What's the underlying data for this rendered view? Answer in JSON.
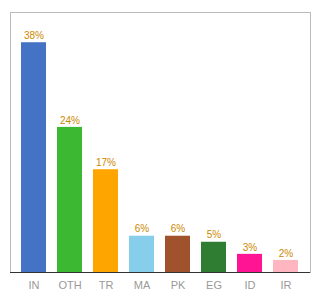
{
  "chart_data": {
    "type": "bar",
    "categories": [
      "IN",
      "OTH",
      "TR",
      "MA",
      "PK",
      "EG",
      "ID",
      "IR"
    ],
    "values": [
      38,
      24,
      17,
      6,
      6,
      5,
      3,
      2
    ],
    "value_labels": [
      "38%",
      "24%",
      "17%",
      "6%",
      "6%",
      "5%",
      "3%",
      "2%"
    ],
    "colors": [
      "#4472C4",
      "#3CB832",
      "#FFA500",
      "#87CEEB",
      "#A0522D",
      "#2E7D32",
      "#FF1493",
      "#FFB6C1"
    ],
    "ylim": [
      0,
      43
    ],
    "data_labels": true,
    "tick_labels": "x",
    "grid": false
  }
}
